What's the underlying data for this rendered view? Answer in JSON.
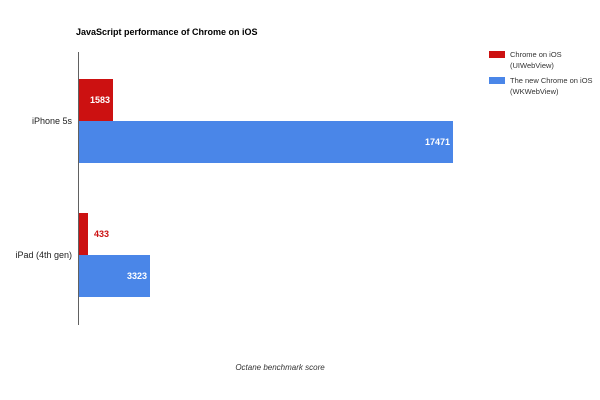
{
  "title": "JavaScript performance of Chrome on iOS",
  "xlabel": "Octane benchmark score",
  "legend": {
    "items": [
      {
        "line1": "Chrome on iOS",
        "line2": "(UIWebView)"
      },
      {
        "line1": "The new Chrome on iOS",
        "line2": "(WKWebView)"
      }
    ]
  },
  "chart_data": {
    "type": "bar",
    "orientation": "horizontal",
    "title": "JavaScript performance of Chrome on iOS",
    "xlabel": "Octane benchmark score",
    "categories": [
      "iPhone 5s",
      "iPad (4th gen)"
    ],
    "series": [
      {
        "name": "Chrome on iOS (UIWebView)",
        "key": "uiwebview",
        "color": "#cc1111",
        "values": [
          1583,
          433
        ]
      },
      {
        "name": "The new Chrome on iOS (WKWebView)",
        "key": "wkwebview",
        "color": "#4a86e8",
        "values": [
          17471,
          3323
        ]
      }
    ],
    "xlim": [
      0,
      18000
    ],
    "grid": false,
    "legend_position": "top-right",
    "value_labels": true
  },
  "colors": {
    "axis": "#616161",
    "inside_value_text": "#ffffff"
  }
}
